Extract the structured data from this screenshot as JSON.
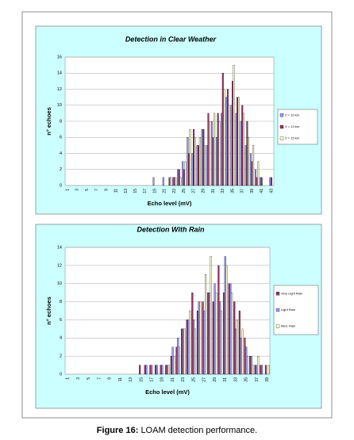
{
  "chart_data": [
    {
      "type": "bar",
      "title": "Detection in Clear Weather",
      "x_label": "Echo level (mV)",
      "y_label": "n° echoes",
      "categories": [
        "1",
        null,
        "3",
        null,
        "5",
        null,
        "7",
        null,
        "9",
        null,
        "11",
        null,
        "13",
        null,
        "15",
        null,
        "17",
        null,
        "19",
        null,
        "21",
        null,
        "23",
        null,
        "25",
        null,
        "27",
        null,
        "29",
        null,
        "31",
        null,
        "33",
        null,
        "35",
        null,
        "37",
        null,
        "39",
        null,
        "41",
        null,
        "43"
      ],
      "series": [
        {
          "name": "V = 10 km",
          "color": "#9999ff",
          "values": [
            0,
            0,
            0,
            0,
            0,
            0,
            0,
            0,
            0,
            0,
            0,
            0,
            0,
            0,
            0,
            0,
            0,
            0,
            1,
            0,
            1,
            0,
            1,
            2,
            3,
            6,
            4,
            5,
            7,
            5,
            8,
            6,
            9,
            11,
            10,
            9,
            8,
            5,
            4,
            2,
            1,
            0,
            1
          ]
        },
        {
          "name": "V = 13 km",
          "color": "#993366",
          "values": [
            0,
            0,
            0,
            0,
            0,
            0,
            0,
            0,
            0,
            0,
            0,
            0,
            0,
            0,
            0,
            0,
            0,
            0,
            0,
            0,
            0,
            1,
            1,
            2,
            2,
            4,
            7,
            5,
            7,
            9,
            6,
            9,
            14,
            12,
            13,
            11,
            10,
            8,
            3,
            1,
            1,
            0,
            1
          ]
        },
        {
          "name": "V = 15 km",
          "color": "#ffffcc",
          "values": [
            0,
            0,
            0,
            0,
            0,
            0,
            0,
            0,
            0,
            0,
            0,
            0,
            0,
            0,
            0,
            0,
            0,
            0,
            0,
            0,
            0,
            1,
            1,
            1,
            3,
            7,
            6,
            6,
            5,
            8,
            9,
            8,
            12,
            10,
            15,
            11,
            9,
            6,
            5,
            3,
            0,
            0,
            0
          ]
        }
      ],
      "ylim": [
        0,
        16
      ],
      "yticks": [
        0,
        2,
        4,
        6,
        8,
        10,
        12,
        14,
        16
      ],
      "grid": true,
      "legend": "right"
    },
    {
      "type": "bar",
      "title": "Detection With Rain",
      "x_label": "Echo level (mV)",
      "y_label": "n° echoes",
      "categories": [
        "1",
        null,
        "3",
        null,
        "5",
        null,
        "7",
        null,
        "9",
        null,
        "11",
        null,
        "13",
        null,
        "15",
        null,
        "17",
        null,
        "19",
        null,
        "21",
        null,
        "23",
        null,
        "25",
        null,
        "27",
        null,
        "29",
        null,
        "31",
        null,
        "33",
        null,
        "35",
        null,
        "37",
        null,
        "39"
      ],
      "series": [
        {
          "name": "Very Light Rain",
          "color": "#993366",
          "values": [
            0,
            0,
            0,
            0,
            0,
            0,
            0,
            0,
            0,
            0,
            0,
            0,
            0,
            0,
            1,
            1,
            1,
            1,
            1,
            1,
            2,
            3,
            5,
            6,
            9,
            7,
            8,
            9,
            8,
            12,
            9,
            10,
            8,
            7,
            4,
            2,
            1,
            1,
            1
          ]
        },
        {
          "name": "Light Rain",
          "color": "#9999ff",
          "values": [
            0,
            0,
            0,
            0,
            0,
            0,
            0,
            0,
            0,
            0,
            0,
            0,
            0,
            0,
            0,
            1,
            1,
            1,
            1,
            1,
            3,
            4,
            5,
            6,
            6,
            8,
            7,
            9,
            10,
            8,
            13,
            10,
            5,
            4,
            3,
            2,
            1,
            1,
            0
          ]
        },
        {
          "name": "Med. Rain",
          "color": "#ffffcc",
          "values": [
            0,
            0,
            0,
            0,
            0,
            0,
            0,
            0,
            0,
            0,
            0,
            0,
            0,
            0,
            0,
            0,
            0,
            0,
            0,
            1,
            2,
            3,
            5,
            7,
            5,
            8,
            11,
            13,
            9,
            7,
            12,
            9,
            6,
            5,
            2,
            1,
            2,
            0,
            1
          ]
        }
      ],
      "ylim": [
        0,
        14
      ],
      "yticks": [
        0,
        2,
        4,
        6,
        8,
        10,
        12,
        14
      ],
      "grid": true,
      "legend": "right"
    }
  ],
  "caption": {
    "label": "Figure 16:",
    "text": "LOAM detection performance."
  }
}
